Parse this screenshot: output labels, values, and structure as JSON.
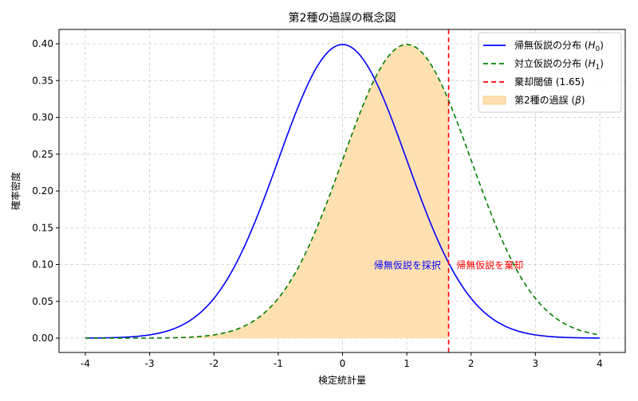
{
  "chart_data": {
    "type": "line",
    "title": "第2種の過誤の概念図",
    "xlabel": "検定統計量",
    "ylabel": "確率密度",
    "xlim": [
      -4.0,
      4.0
    ],
    "ylim": [
      0.0,
      0.42
    ],
    "x_ticks": [
      -4,
      -3,
      -2,
      -1,
      0,
      1,
      2,
      3,
      4
    ],
    "y_ticks": [
      0.0,
      0.05,
      0.1,
      0.15,
      0.2,
      0.25,
      0.3,
      0.35,
      0.4
    ],
    "y_tick_labels": [
      "0.00",
      "0.05",
      "0.10",
      "0.15",
      "0.20",
      "0.25",
      "0.30",
      "0.35",
      "0.40"
    ],
    "grid": true,
    "series": [
      {
        "name": "帰無仮説の分布 (H0)",
        "legend_main": "帰無仮説の分布 (",
        "legend_var": "H",
        "legend_sub": "0",
        "legend_tail": ")",
        "distribution": "normal",
        "mean": 0,
        "sd": 1,
        "color": "#0000ff",
        "style": "solid"
      },
      {
        "name": "対立仮説の分布 (H1)",
        "legend_main": "対立仮説の分布 (",
        "legend_var": "H",
        "legend_sub": "1",
        "legend_tail": ")",
        "distribution": "normal",
        "mean": 1,
        "sd": 1,
        "color": "#008000",
        "style": "dashed"
      }
    ],
    "critical_value": {
      "legend": "棄却閾値 (1.65)",
      "x": 1.65,
      "color": "#ff0000",
      "style": "dashed"
    },
    "shaded_region": {
      "legend_main": "第2種の過誤 (",
      "legend_var": "β",
      "legend_tail": ")",
      "from": -4.0,
      "to": 1.65,
      "under_series": 1,
      "color": "#ffe0b0"
    },
    "legend_position": "top-right",
    "annotations": [
      {
        "text": "帰無仮説を採択",
        "x": 1.53,
        "y": 0.1,
        "align": "right",
        "color": "#0000ff"
      },
      {
        "text": "帰無仮説を棄却",
        "x": 1.77,
        "y": 0.1,
        "align": "left",
        "color": "#ff0000"
      }
    ]
  }
}
